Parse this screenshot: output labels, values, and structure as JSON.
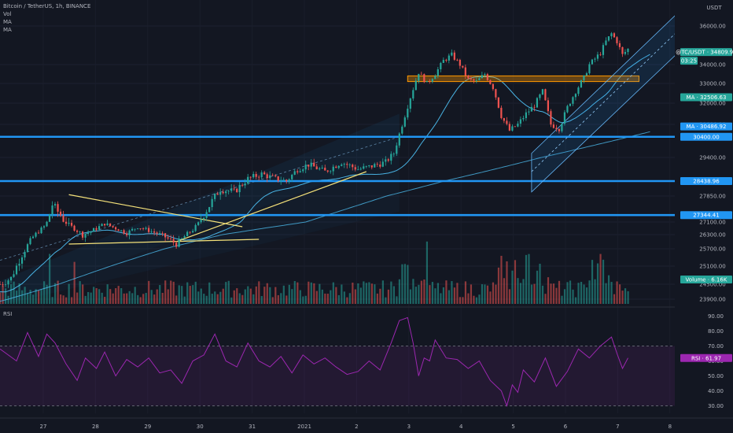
{
  "header": {
    "symbol": "Bitcoin / TetherUS, 1h, BINANCE",
    "indicators": [
      "Vol",
      "MA",
      "MA"
    ]
  },
  "colors": {
    "background": "#131722",
    "bull": "#26a69a",
    "bear": "#ef5350",
    "support": "#2196f3",
    "resistance_zone": "#ff9800",
    "triangle": "#f5e27a",
    "ma": "#4fc3f7",
    "rsi": "#9c27b0"
  },
  "chart_data": [
    {
      "type": "candlestick",
      "title": "Bitcoin / TetherUS, 1h, BINANCE",
      "currency": "USDT",
      "x_ticks": [
        "27",
        "28",
        "29",
        "30",
        "31",
        "2021",
        "2",
        "3",
        "4",
        "5",
        "6",
        "7",
        "8"
      ],
      "y_ticks": [
        23900,
        24500,
        25100,
        25700,
        26300,
        27100,
        27850,
        28400,
        29400,
        31000,
        32000,
        33000,
        34000,
        36000
      ],
      "ylim": [
        23600,
        37000
      ],
      "last_price_label": "@TC/USDT · 34809.99",
      "countdown_label": "03:25",
      "close_series": [
        [
          0,
          24500
        ],
        [
          4,
          24700
        ],
        [
          8,
          25500
        ],
        [
          12,
          26200
        ],
        [
          16,
          26800
        ],
        [
          19,
          27600
        ],
        [
          22,
          27300
        ],
        [
          26,
          26800
        ],
        [
          30,
          26300
        ],
        [
          33,
          26500
        ],
        [
          38,
          27000
        ],
        [
          42,
          26700
        ],
        [
          46,
          26400
        ],
        [
          50,
          26800
        ],
        [
          55,
          26500
        ],
        [
          60,
          26200
        ],
        [
          64,
          25900
        ],
        [
          66,
          26100
        ],
        [
          70,
          26600
        ],
        [
          73,
          27200
        ],
        [
          77,
          27700
        ],
        [
          80,
          28100
        ],
        [
          85,
          28000
        ],
        [
          90,
          28500
        ],
        [
          95,
          28700
        ],
        [
          100,
          28500
        ],
        [
          104,
          28400
        ],
        [
          108,
          28900
        ],
        [
          112,
          29100
        ],
        [
          118,
          28800
        ],
        [
          124,
          29200
        ],
        [
          130,
          28900
        ],
        [
          134,
          29000
        ],
        [
          140,
          29200
        ],
        [
          143,
          29600
        ],
        [
          146,
          31000
        ],
        [
          149,
          32300
        ],
        [
          152,
          33600
        ],
        [
          155,
          33000
        ],
        [
          158,
          33500
        ],
        [
          161,
          34200
        ],
        [
          164,
          34500
        ],
        [
          167,
          34000
        ],
        [
          170,
          33200
        ],
        [
          173,
          33100
        ],
        [
          176,
          33500
        ],
        [
          179,
          32800
        ],
        [
          182,
          31400
        ],
        [
          185,
          30700
        ],
        [
          188,
          31000
        ],
        [
          191,
          31500
        ],
        [
          194,
          31900
        ],
        [
          197,
          32600
        ],
        [
          200,
          31000
        ],
        [
          203,
          30800
        ],
        [
          206,
          31800
        ],
        [
          209,
          32600
        ],
        [
          212,
          33300
        ],
        [
          214,
          34000
        ],
        [
          216,
          34300
        ],
        [
          218,
          34600
        ],
        [
          220,
          35200
        ],
        [
          222,
          35600
        ],
        [
          224,
          35200
        ],
        [
          226,
          34500
        ],
        [
          228,
          34800
        ]
      ],
      "volume_label": "Volume · 6.16K",
      "ma_labels": [
        {
          "name": "MA",
          "value": "32506.63"
        },
        {
          "name": "MA",
          "value": "30486.92"
        }
      ],
      "horizontal_levels": [
        {
          "name": "support-30400",
          "value": 30400,
          "label": "30400.00"
        },
        {
          "name": "support-28400",
          "value": 28400,
          "label": "28438.96"
        },
        {
          "name": "support-27300",
          "value": 27300,
          "label": "27344.41"
        }
      ],
      "resistance_zone": [
        33100,
        33400
      ]
    },
    {
      "type": "line",
      "name": "RSI",
      "label": "RSI",
      "value_label": "RSI · 61.97",
      "y_ticks": [
        30,
        40,
        50,
        60,
        70,
        80,
        90
      ],
      "ylim": [
        25,
        95
      ],
      "band": [
        30,
        70
      ],
      "x": [
        0,
        6,
        10,
        14,
        17,
        20,
        24,
        28,
        31,
        35,
        38,
        42,
        46,
        50,
        54,
        58,
        62,
        66,
        70,
        74,
        78,
        82,
        86,
        90,
        94,
        98,
        102,
        106,
        110,
        114,
        118,
        122,
        126,
        130,
        134,
        138,
        142,
        145,
        148,
        150,
        152,
        154,
        156,
        158,
        162,
        166,
        170,
        174,
        178,
        182,
        184,
        186,
        188,
        190,
        194,
        198,
        202,
        206,
        210,
        214,
        218,
        222,
        224,
        226,
        228
      ],
      "values": [
        68,
        60,
        79,
        63,
        78,
        72,
        58,
        47,
        62,
        55,
        66,
        50,
        61,
        56,
        62,
        52,
        54,
        45,
        60,
        64,
        78,
        60,
        56,
        72,
        60,
        56,
        63,
        52,
        64,
        58,
        62,
        56,
        51,
        53,
        60,
        54,
        72,
        87,
        89,
        72,
        50,
        62,
        60,
        74,
        62,
        61,
        55,
        60,
        47,
        40,
        30,
        44,
        39,
        54,
        46,
        62,
        43,
        53,
        68,
        62,
        70,
        76,
        65,
        55,
        62
      ]
    }
  ]
}
